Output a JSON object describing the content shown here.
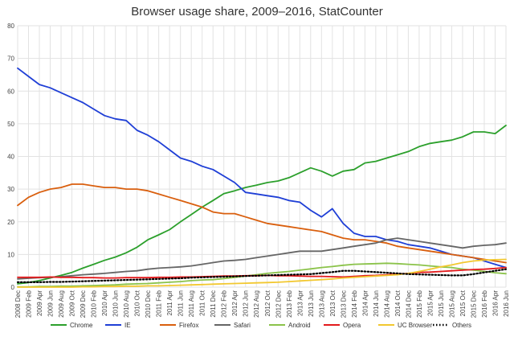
{
  "chart_data": {
    "type": "line",
    "title": "Browser usage share, 2009–2016, StatCounter",
    "xlabel": "",
    "ylabel": "",
    "ylim": [
      0,
      80
    ],
    "yticks": [
      0,
      10,
      20,
      30,
      40,
      50,
      60,
      70,
      80
    ],
    "grid": true,
    "legend_position": "bottom",
    "x": [
      "2008 Dec",
      "2009 Feb",
      "2009 Apr",
      "2009 Jun",
      "2009 Aug",
      "2009 Oct",
      "2009 Dec",
      "2010 Feb",
      "2010 Apr",
      "2010 Jun",
      "2010 Aug",
      "2010 Oct",
      "2010 Dec",
      "2011 Feb",
      "2011 Apr",
      "2011 Jun",
      "2011 Aug",
      "2011 Oct",
      "2011 Dec",
      "2012 Feb",
      "2012 Apr",
      "2012 Jun",
      "2012 Aug",
      "2012 Oct",
      "2012 Dec",
      "2013 Feb",
      "2013 Apr",
      "2013 Jun",
      "2013 Aug",
      "2013 Oct",
      "2013 Dec",
      "2014 Feb",
      "2014 Apr",
      "2014 Jun",
      "2014 Aug",
      "2014 Oct",
      "2014 Dec",
      "2015 Feb",
      "2015 Apr",
      "2015 Jun",
      "2015 Aug",
      "2015 Oct",
      "2015 Dec",
      "2016 Feb",
      "2016 Apr",
      "2016 Jun"
    ],
    "series": [
      {
        "name": "Chrome",
        "color": "#2ca02c",
        "dash": "solid",
        "values": [
          1.0,
          1.4,
          2.0,
          2.8,
          3.6,
          4.5,
          5.8,
          7.0,
          8.2,
          9.2,
          10.5,
          12.2,
          14.5,
          16.0,
          17.6,
          20.0,
          22.2,
          24.5,
          26.5,
          28.6,
          29.5,
          30.5,
          31.2,
          32.0,
          32.5,
          33.5,
          35.0,
          36.5,
          35.5,
          34.0,
          35.5,
          36.0,
          38.0,
          38.5,
          39.5,
          40.5,
          41.5,
          43.0,
          44.0,
          44.5,
          45.0,
          46.0,
          47.5,
          47.5,
          47.0,
          49.5
        ]
      },
      {
        "name": "IE",
        "color": "#1f3fd6",
        "dash": "solid",
        "values": [
          67.0,
          64.5,
          62.0,
          61.0,
          59.5,
          58.0,
          56.5,
          54.5,
          52.5,
          51.5,
          51.0,
          48.0,
          46.5,
          44.5,
          42.0,
          39.5,
          38.5,
          37.0,
          36.0,
          34.0,
          32.0,
          29.0,
          28.5,
          28.0,
          27.5,
          26.5,
          26.0,
          23.5,
          21.5,
          24.0,
          19.5,
          16.5,
          15.5,
          15.5,
          14.5,
          14.0,
          13.0,
          12.5,
          12.0,
          11.0,
          10.0,
          9.5,
          9.0,
          8.0,
          7.0,
          6.0
        ]
      },
      {
        "name": "Firefox",
        "color": "#d95f0e",
        "dash": "solid",
        "values": [
          25.0,
          27.5,
          29.0,
          30.0,
          30.5,
          31.5,
          31.5,
          31.0,
          30.5,
          30.5,
          30.0,
          30.0,
          29.5,
          28.5,
          27.5,
          26.5,
          25.5,
          24.5,
          23.0,
          22.5,
          22.5,
          21.5,
          20.5,
          19.5,
          19.0,
          18.5,
          18.0,
          17.5,
          17.0,
          16.0,
          15.0,
          14.5,
          14.5,
          14.0,
          13.5,
          12.5,
          12.0,
          11.5,
          11.0,
          10.5,
          10.0,
          9.5,
          9.0,
          8.5,
          8.0,
          7.5
        ]
      },
      {
        "name": "Safari",
        "color": "#666666",
        "dash": "solid",
        "values": [
          2.5,
          2.7,
          2.9,
          3.0,
          3.2,
          3.5,
          3.8,
          4.0,
          4.2,
          4.5,
          4.8,
          5.0,
          5.5,
          5.8,
          6.0,
          6.2,
          6.5,
          7.0,
          7.5,
          8.0,
          8.2,
          8.5,
          9.0,
          9.5,
          10.0,
          10.5,
          11.0,
          11.0,
          11.0,
          11.5,
          12.0,
          12.5,
          13.0,
          13.5,
          14.5,
          15.0,
          14.5,
          14.0,
          13.5,
          13.0,
          12.5,
          12.0,
          12.5,
          12.8,
          13.0,
          13.5
        ]
      },
      {
        "name": "Android",
        "color": "#8bc34a",
        "dash": "solid",
        "values": [
          0.1,
          0.1,
          0.2,
          0.2,
          0.3,
          0.3,
          0.4,
          0.5,
          0.6,
          0.7,
          0.9,
          1.0,
          1.1,
          1.3,
          1.5,
          1.7,
          2.0,
          2.2,
          2.3,
          2.6,
          3.0,
          3.4,
          3.8,
          4.2,
          4.5,
          4.8,
          5.2,
          5.6,
          6.0,
          6.3,
          6.7,
          7.0,
          7.1,
          7.2,
          7.3,
          7.2,
          7.0,
          6.8,
          6.5,
          6.2,
          6.0,
          5.5,
          5.2,
          4.8,
          4.4,
          4.1
        ]
      },
      {
        "name": "Opera",
        "color": "#e31a1c",
        "dash": "solid",
        "values": [
          3.0,
          3.0,
          3.0,
          3.1,
          3.0,
          3.0,
          2.9,
          2.9,
          2.8,
          2.8,
          2.9,
          2.9,
          2.9,
          3.0,
          3.0,
          3.1,
          3.1,
          3.2,
          3.3,
          3.4,
          3.4,
          3.5,
          3.5,
          3.6,
          3.5,
          3.5,
          3.4,
          3.3,
          3.3,
          3.2,
          3.1,
          3.3,
          3.5,
          3.6,
          3.8,
          4.0,
          4.2,
          4.5,
          4.6,
          4.8,
          5.0,
          5.2,
          5.4,
          5.5,
          5.7,
          6.0
        ]
      },
      {
        "name": "UC Browser",
        "color": "#f2c830",
        "dash": "solid",
        "values": [
          0.0,
          0.0,
          0.0,
          0.0,
          0.0,
          0.0,
          0.1,
          0.1,
          0.2,
          0.2,
          0.3,
          0.3,
          0.4,
          0.4,
          0.5,
          0.6,
          0.7,
          0.8,
          0.9,
          1.0,
          1.1,
          1.2,
          1.3,
          1.4,
          1.5,
          1.7,
          1.9,
          2.1,
          2.3,
          2.5,
          2.8,
          3.0,
          3.2,
          3.4,
          3.6,
          3.8,
          4.2,
          4.8,
          5.5,
          6.2,
          6.8,
          7.5,
          8.0,
          8.3,
          8.4,
          8.5
        ]
      },
      {
        "name": "Others",
        "color": "#000000",
        "dash": "dotted",
        "values": [
          1.5,
          1.5,
          1.5,
          1.6,
          1.6,
          1.7,
          1.8,
          1.9,
          2.0,
          2.1,
          2.2,
          2.3,
          2.4,
          2.5,
          2.6,
          2.7,
          2.9,
          3.0,
          3.1,
          3.2,
          3.3,
          3.4,
          3.5,
          3.6,
          3.7,
          3.8,
          3.9,
          4.0,
          4.3,
          4.6,
          5.0,
          5.0,
          4.8,
          4.6,
          4.4,
          4.2,
          4.0,
          3.9,
          3.8,
          3.7,
          3.6,
          3.6,
          4.0,
          4.5,
          5.0,
          5.5
        ]
      }
    ]
  }
}
